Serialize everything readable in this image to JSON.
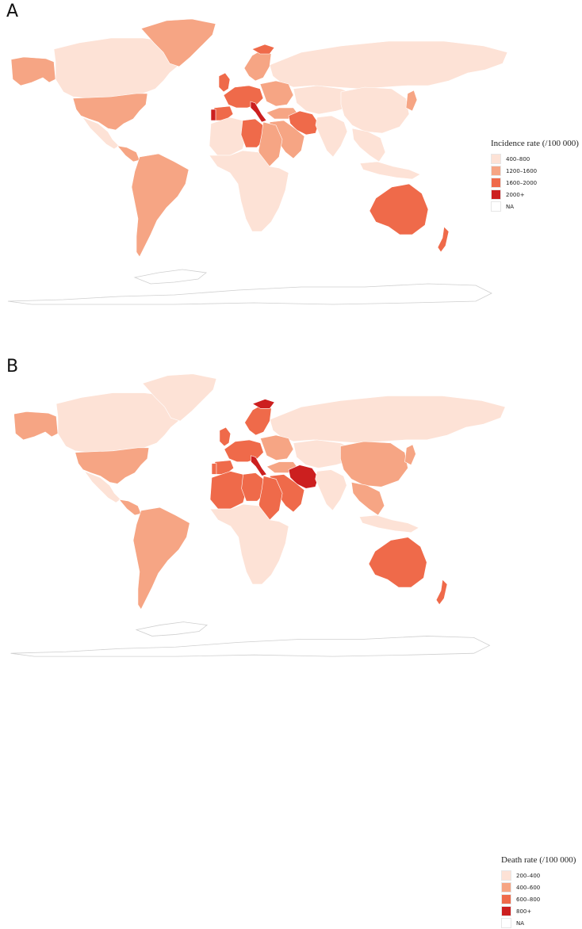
{
  "panels": [
    {
      "id": "A",
      "label": "A",
      "legend": {
        "title": "Incidence rate (/100 000)",
        "items": [
          {
            "label": "400–800",
            "color": "#fde2d6"
          },
          {
            "label": "1200–1600",
            "color": "#f6a584"
          },
          {
            "label": "1600–2000",
            "color": "#ef6a4a"
          },
          {
            "label": "2000+",
            "color": "#cc1f1f"
          },
          {
            "label": "NA",
            "color": "#ffffff"
          }
        ]
      },
      "regions": [
        {
          "name": "alaska",
          "cls": 1
        },
        {
          "name": "canada",
          "cls": 0
        },
        {
          "name": "greenland",
          "cls": 1
        },
        {
          "name": "usa",
          "cls": 1
        },
        {
          "name": "mexico",
          "cls": 0
        },
        {
          "name": "central-america",
          "cls": 1
        },
        {
          "name": "south-america",
          "cls": 1
        },
        {
          "name": "russia",
          "cls": 0
        },
        {
          "name": "scandinavia",
          "cls": 1
        },
        {
          "name": "norway-north",
          "cls": 2
        },
        {
          "name": "uk-ireland",
          "cls": 2
        },
        {
          "name": "western-europe",
          "cls": 2
        },
        {
          "name": "iberia",
          "cls": 2
        },
        {
          "name": "portugal",
          "cls": 3
        },
        {
          "name": "italy",
          "cls": 3
        },
        {
          "name": "eastern-europe",
          "cls": 1
        },
        {
          "name": "turkey",
          "cls": 1
        },
        {
          "name": "iran",
          "cls": 2
        },
        {
          "name": "middle-east",
          "cls": 1
        },
        {
          "name": "north-africa-west",
          "cls": 0
        },
        {
          "name": "libya",
          "cls": 2
        },
        {
          "name": "egypt-sudan",
          "cls": 1
        },
        {
          "name": "sub-saharan-africa",
          "cls": 0
        },
        {
          "name": "central-asia",
          "cls": 0
        },
        {
          "name": "india",
          "cls": 0
        },
        {
          "name": "china",
          "cls": 0
        },
        {
          "name": "southeast-asia",
          "cls": 0
        },
        {
          "name": "japan",
          "cls": 1
        },
        {
          "name": "indonesia",
          "cls": 0
        },
        {
          "name": "australia",
          "cls": 2
        },
        {
          "name": "new-zealand",
          "cls": 2
        }
      ]
    },
    {
      "id": "B",
      "label": "B",
      "legend": {
        "title": "Death rate (/100 000)",
        "items": [
          {
            "label": "200–400",
            "color": "#fde2d6"
          },
          {
            "label": "400–600",
            "color": "#f6a584"
          },
          {
            "label": "600–800",
            "color": "#ef6a4a"
          },
          {
            "label": "800+",
            "color": "#cc1f1f"
          },
          {
            "label": "NA",
            "color": "#ffffff"
          }
        ]
      },
      "regions": [
        {
          "name": "alaska",
          "cls": 1
        },
        {
          "name": "canada",
          "cls": 0
        },
        {
          "name": "greenland",
          "cls": 0
        },
        {
          "name": "usa",
          "cls": 1
        },
        {
          "name": "mexico",
          "cls": 0
        },
        {
          "name": "central-america",
          "cls": 1
        },
        {
          "name": "south-america",
          "cls": 1
        },
        {
          "name": "russia",
          "cls": 0
        },
        {
          "name": "scandinavia",
          "cls": 2
        },
        {
          "name": "norway-north",
          "cls": 3
        },
        {
          "name": "uk-ireland",
          "cls": 2
        },
        {
          "name": "western-europe",
          "cls": 2
        },
        {
          "name": "iberia",
          "cls": 2
        },
        {
          "name": "portugal",
          "cls": 2
        },
        {
          "name": "italy",
          "cls": 3
        },
        {
          "name": "eastern-europe",
          "cls": 1
        },
        {
          "name": "turkey",
          "cls": 1
        },
        {
          "name": "iran",
          "cls": 3
        },
        {
          "name": "middle-east",
          "cls": 2
        },
        {
          "name": "north-africa-west",
          "cls": 2
        },
        {
          "name": "libya",
          "cls": 2
        },
        {
          "name": "egypt-sudan",
          "cls": 2
        },
        {
          "name": "sub-saharan-africa",
          "cls": 0
        },
        {
          "name": "central-asia",
          "cls": 0
        },
        {
          "name": "india",
          "cls": 0
        },
        {
          "name": "china",
          "cls": 1
        },
        {
          "name": "southeast-asia",
          "cls": 1
        },
        {
          "name": "japan",
          "cls": 1
        },
        {
          "name": "indonesia",
          "cls": 0
        },
        {
          "name": "australia",
          "cls": 2
        },
        {
          "name": "new-zealand",
          "cls": 2
        }
      ]
    }
  ]
}
